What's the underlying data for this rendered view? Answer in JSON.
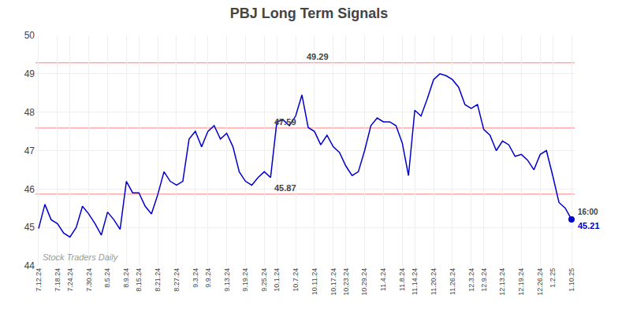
{
  "chart_data": {
    "type": "line",
    "title": "PBJ Long Term Signals",
    "categories": [
      "7.12.24",
      null,
      null,
      "7.18.24",
      null,
      "7.24.24",
      null,
      null,
      "7.30.24",
      null,
      null,
      "8.5.24",
      null,
      null,
      "8.9.24",
      null,
      "8.15.24",
      null,
      null,
      "8.21.24",
      null,
      null,
      "8.27.24",
      null,
      null,
      "9.3.24",
      null,
      "9.9.24",
      null,
      null,
      "9.13.24",
      null,
      null,
      "9.19.24",
      null,
      null,
      "9.25.24",
      null,
      "10.1.24",
      null,
      null,
      "10.7.24",
      null,
      null,
      "10.11.24",
      null,
      null,
      "10.17.24",
      null,
      "10.23.24",
      null,
      null,
      "10.29.24",
      null,
      null,
      "11.4.24",
      null,
      null,
      "11.8.24",
      null,
      "11.14.24",
      null,
      null,
      "11.20.24",
      null,
      null,
      "11.26.24",
      null,
      null,
      "12.3.24",
      null,
      "12.9.24",
      null,
      null,
      "12.13.24",
      null,
      null,
      "12.19.24",
      null,
      null,
      "12.26.24",
      null,
      "1.2.25",
      null,
      null,
      "1.10.25"
    ],
    "series": [
      {
        "name": "PBJ",
        "color": "#0000cc",
        "values": [
          44.97,
          45.6,
          45.2,
          45.1,
          44.85,
          44.75,
          45.0,
          45.55,
          45.35,
          45.1,
          44.8,
          45.4,
          45.2,
          44.95,
          46.2,
          45.9,
          45.9,
          45.55,
          45.35,
          45.85,
          46.45,
          46.2,
          46.1,
          46.2,
          47.3,
          47.5,
          47.1,
          47.5,
          47.65,
          47.3,
          47.45,
          47.1,
          46.45,
          46.2,
          46.1,
          46.3,
          46.45,
          46.3,
          47.75,
          47.8,
          47.65,
          47.9,
          48.45,
          47.6,
          47.5,
          47.15,
          47.4,
          47.1,
          46.95,
          46.6,
          46.35,
          46.45,
          47.0,
          47.65,
          47.85,
          47.75,
          47.75,
          47.65,
          47.2,
          46.35,
          48.05,
          47.9,
          48.35,
          48.85,
          49.0,
          48.95,
          48.85,
          48.65,
          48.2,
          48.1,
          48.2,
          47.55,
          47.4,
          47.0,
          47.25,
          47.15,
          46.85,
          46.9,
          46.75,
          46.5,
          46.9,
          47.0,
          46.35,
          45.65,
          45.5,
          45.21
        ]
      }
    ],
    "reference_lines": [
      {
        "value": 49.29,
        "label": "49.29",
        "color": "#ffaaaa"
      },
      {
        "value": 47.59,
        "label": "47.59",
        "color": "#ffaaaa"
      },
      {
        "value": 45.87,
        "label": "45.87",
        "color": "#ffaaaa"
      }
    ],
    "annotations": [
      "16:00",
      "45.21",
      "Stock Traders Daily"
    ],
    "ylim": [
      44,
      50
    ],
    "yticks": [
      44,
      45,
      46,
      47,
      48,
      49,
      50
    ],
    "grid": true
  }
}
